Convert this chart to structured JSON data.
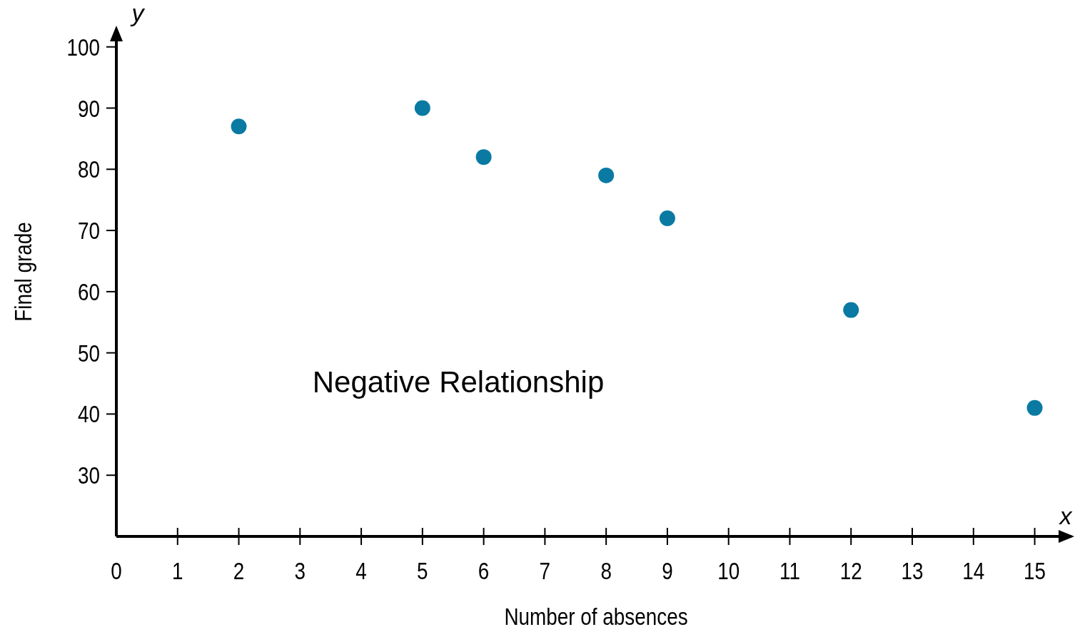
{
  "chart_data": {
    "type": "scatter",
    "xlabel": "Number of absences",
    "ylabel": "Final grade",
    "annotations": [
      "Negative Relationship",
      "x",
      "y"
    ],
    "x": [
      2,
      5,
      6,
      8,
      9,
      12,
      15
    ],
    "series": [
      {
        "color": "#0a7aa3",
        "values": [
          87,
          90,
          82,
          79,
          72,
          57,
          41
        ]
      }
    ],
    "xlim": [
      0,
      15.6
    ],
    "ylim": [
      20,
      103
    ],
    "xticks": [
      0,
      1,
      2,
      3,
      4,
      5,
      6,
      7,
      8,
      9,
      10,
      11,
      12,
      13,
      14,
      15
    ],
    "yticks": [
      30,
      40,
      50,
      60,
      70,
      80,
      90,
      100
    ],
    "grid": false,
    "marker": "circle"
  }
}
